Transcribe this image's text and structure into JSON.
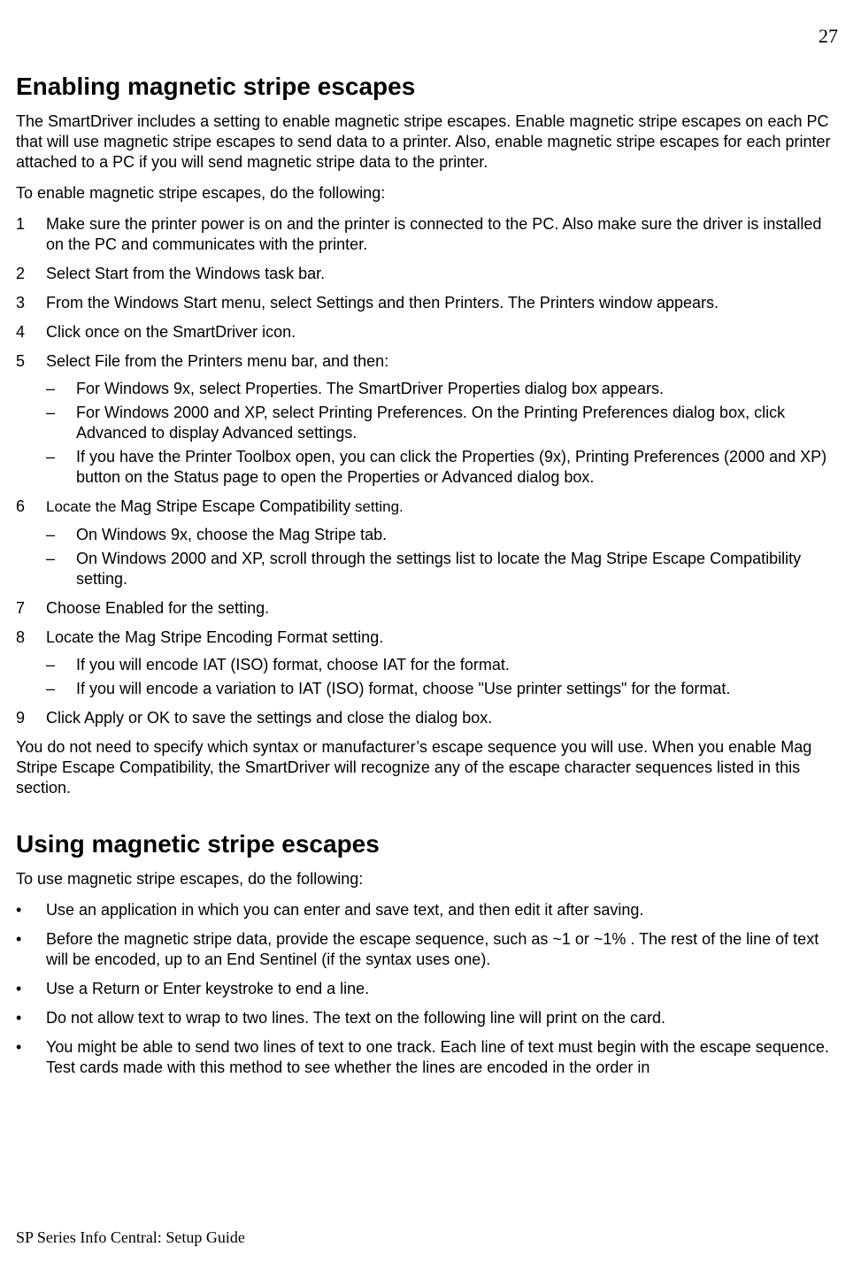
{
  "page_number": "27",
  "section1": {
    "heading": "Enabling magnetic stripe escapes",
    "intro": "The SmartDriver includes a setting to enable magnetic stripe escapes. Enable magnetic stripe escapes on each PC that will use magnetic stripe escapes to send data to a printer. Also, enable magnetic stripe escapes for each printer attached to a PC if you will send magnetic stripe data to the printer.",
    "lead": "To enable magnetic stripe escapes, do the following:",
    "steps": {
      "s1": "Make sure the printer power is on and the printer is connected to the PC. Also make sure the driver is installed on the PC and communicates with the printer.",
      "s2": "Select Start from the Windows task bar.",
      "s3": "From the Windows Start menu, select Settings and then Printers. The Printers window appears.",
      "s4": "Click once on the SmartDriver icon.",
      "s5": "Select File from the Printers menu bar, and then:",
      "s5a": "For Windows 9x, select Properties. The SmartDriver Properties dialog box appears.",
      "s5b": "For Windows 2000 and XP, select Printing Preferences. On the Printing Preferences dialog box, click Advanced to display Advanced settings.",
      "s5c": "If you have the Printer Toolbox open, you can click the Properties (9x), Printing Preferences (2000 and XP) button on the Status page to open the Properties or Advanced dialog box.",
      "s6_pre": "Locate the ",
      "s6_mid": "Mag Stripe Escape Compatibility",
      "s6_post": " setting.",
      "s6a": "On Windows 9x, choose the Mag Stripe tab.",
      "s6b": "On Windows 2000 and XP, scroll through the settings list to locate the Mag Stripe Escape Compatibility setting.",
      "s7": "Choose Enabled for the setting.",
      "s8": "Locate the Mag Stripe Encoding Format setting.",
      "s8a": "If you will encode IAT (ISO) format, choose IAT for the format.",
      "s8b": "If you will encode a variation to IAT (ISO) format, choose \"Use printer settings\" for the format.",
      "s9": "Click Apply or OK to save the settings and close the dialog box."
    },
    "closing": "You do not need to specify which syntax or manufacturer’s escape sequence you will use. When you enable Mag Stripe Escape Compatibility, the SmartDriver will recognize any of the escape character sequences listed in this section."
  },
  "section2": {
    "heading": "Using magnetic stripe escapes",
    "lead": "To use magnetic stripe escapes, do the following:",
    "bullets": {
      "b1": "Use an application in which you can enter and save text, and then edit it after saving.",
      "b2": "Before the magnetic stripe data, provide the escape sequence, such as ~1 or ~1% . The rest of the line of text will be encoded, up to an End Sentinel (if the syntax uses one).",
      "b3": "Use a Return or Enter keystroke to end a line.",
      "b4": "Do not allow text to wrap to two lines. The text on the following line will print on the card.",
      "b5": "You might be able to send two lines of text to one track. Each line of text must begin with the escape sequence. Test cards made with this method to see whether the lines are encoded in the order in"
    }
  },
  "footer": "SP Series Info Central: Setup Guide"
}
